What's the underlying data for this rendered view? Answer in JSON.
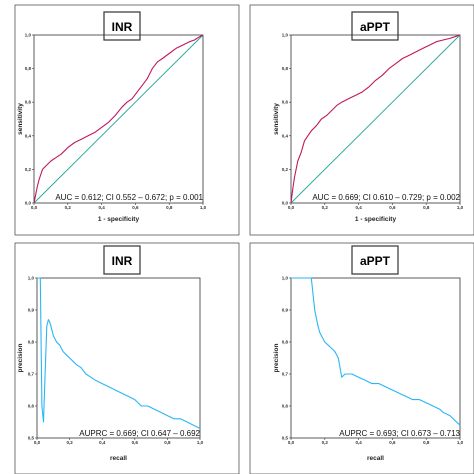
{
  "chart_data": [
    {
      "type": "line",
      "title": "INR",
      "xlabel": "1 - specificity",
      "ylabel": "sensitivity",
      "xlim": [
        0,
        1
      ],
      "ylim": [
        0,
        1
      ],
      "x_ticks": [
        "0,0",
        "0,2",
        "0,4",
        "0,6",
        "0,8",
        "1,0"
      ],
      "y_ticks": [
        "0,0",
        "0,2",
        "0,4",
        "0,6",
        "0,8",
        "1,0"
      ],
      "annotation": "AUC = 0.612; CI 0.552 – 0.672; p = 0.001",
      "colors": {
        "curve": "#c2185b",
        "reference": "#26a69a"
      },
      "series": [
        {
          "x": [
            0,
            0.01,
            0.02,
            0.03,
            0.05,
            0.07,
            0.1,
            0.13,
            0.16,
            0.2,
            0.24,
            0.28,
            0.32,
            0.36,
            0.4,
            0.44,
            0.48,
            0.52,
            0.55,
            0.58,
            0.61,
            0.64,
            0.67,
            0.7,
            0.73,
            0.76,
            0.8,
            0.84,
            0.88,
            0.92,
            0.95,
            0.98,
            1.0
          ],
          "y": [
            0,
            0.05,
            0.1,
            0.14,
            0.2,
            0.22,
            0.25,
            0.27,
            0.29,
            0.33,
            0.36,
            0.38,
            0.4,
            0.42,
            0.45,
            0.48,
            0.52,
            0.57,
            0.6,
            0.62,
            0.66,
            0.7,
            0.74,
            0.8,
            0.84,
            0.86,
            0.89,
            0.92,
            0.94,
            0.96,
            0.97,
            0.99,
            1.0
          ]
        }
      ]
    },
    {
      "type": "line",
      "title": "aPPT",
      "xlabel": "1 - specificity",
      "ylabel": "sensitivity",
      "xlim": [
        0,
        1
      ],
      "ylim": [
        0,
        1
      ],
      "x_ticks": [
        "0,0",
        "0,2",
        "0,4",
        "0,6",
        "0,8",
        "1,0"
      ],
      "y_ticks": [
        "0,0",
        "0,2",
        "0,4",
        "0,6",
        "0,8",
        "1,0"
      ],
      "annotation": "AUC = 0.669; CI 0.610 – 0.729; p = 0.002",
      "colors": {
        "curve": "#c2185b",
        "reference": "#26a69a"
      },
      "series": [
        {
          "x": [
            0,
            0.01,
            0.02,
            0.04,
            0.06,
            0.08,
            0.1,
            0.12,
            0.15,
            0.18,
            0.21,
            0.24,
            0.27,
            0.3,
            0.34,
            0.38,
            0.42,
            0.46,
            0.5,
            0.54,
            0.58,
            0.62,
            0.66,
            0.7,
            0.74,
            0.78,
            0.82,
            0.86,
            0.9,
            0.94,
            0.97,
            1.0
          ],
          "y": [
            0,
            0.08,
            0.15,
            0.25,
            0.3,
            0.37,
            0.4,
            0.43,
            0.46,
            0.5,
            0.52,
            0.55,
            0.58,
            0.6,
            0.62,
            0.64,
            0.66,
            0.69,
            0.73,
            0.76,
            0.8,
            0.83,
            0.86,
            0.88,
            0.9,
            0.92,
            0.94,
            0.96,
            0.97,
            0.98,
            0.99,
            1.0
          ]
        }
      ]
    },
    {
      "type": "line",
      "title": "INR",
      "xlabel": "recall",
      "ylabel": "precision",
      "xlim": [
        0,
        1
      ],
      "ylim": [
        0.5,
        1
      ],
      "x_ticks": [
        "0,0",
        "0,2",
        "0,4",
        "0,6",
        "0,8",
        "1,0"
      ],
      "y_ticks": [
        "0,5",
        "0,6",
        "0,7",
        "0,8",
        "0,9",
        "1,0"
      ],
      "annotation": "AUPRC = 0.669; CI 0.647 – 0.692",
      "colors": {
        "curve": "#29b6f6"
      },
      "series": [
        {
          "x": [
            0,
            0.01,
            0.02,
            0.03,
            0.04,
            0.05,
            0.06,
            0.07,
            0.08,
            0.09,
            0.1,
            0.12,
            0.14,
            0.16,
            0.18,
            0.2,
            0.22,
            0.24,
            0.27,
            0.3,
            0.33,
            0.36,
            0.4,
            0.44,
            0.48,
            0.52,
            0.56,
            0.6,
            0.64,
            0.68,
            0.72,
            0.76,
            0.8,
            0.84,
            0.88,
            0.92,
            0.96,
            1.0
          ],
          "y": [
            1.0,
            1.0,
            1.0,
            0.6,
            0.55,
            0.7,
            0.85,
            0.87,
            0.86,
            0.84,
            0.82,
            0.8,
            0.79,
            0.77,
            0.76,
            0.75,
            0.74,
            0.73,
            0.72,
            0.7,
            0.69,
            0.68,
            0.67,
            0.66,
            0.65,
            0.64,
            0.63,
            0.62,
            0.6,
            0.6,
            0.59,
            0.58,
            0.57,
            0.56,
            0.56,
            0.55,
            0.54,
            0.53
          ]
        }
      ]
    },
    {
      "type": "line",
      "title": "aPPT",
      "xlabel": "recall",
      "ylabel": "precision",
      "xlim": [
        0,
        1
      ],
      "ylim": [
        0.5,
        1
      ],
      "x_ticks": [
        "0,0",
        "0,2",
        "0,4",
        "0,6",
        "0,8",
        "1,0"
      ],
      "y_ticks": [
        "0,5",
        "0,6",
        "0,7",
        "0,8",
        "0,9",
        "1,0"
      ],
      "annotation": "AUPRC = 0.693; CI 0.673 – 0.713",
      "colors": {
        "curve": "#29b6f6"
      },
      "series": [
        {
          "x": [
            0,
            0.04,
            0.08,
            0.12,
            0.14,
            0.16,
            0.17,
            0.18,
            0.2,
            0.22,
            0.24,
            0.26,
            0.28,
            0.3,
            0.32,
            0.36,
            0.4,
            0.44,
            0.48,
            0.52,
            0.56,
            0.6,
            0.64,
            0.68,
            0.72,
            0.76,
            0.8,
            0.84,
            0.88,
            0.9,
            0.94,
            0.98,
            1.0
          ],
          "y": [
            1.0,
            1.0,
            1.0,
            1.0,
            0.9,
            0.85,
            0.83,
            0.82,
            0.8,
            0.79,
            0.78,
            0.77,
            0.75,
            0.69,
            0.7,
            0.7,
            0.69,
            0.68,
            0.67,
            0.67,
            0.66,
            0.65,
            0.64,
            0.63,
            0.62,
            0.62,
            0.61,
            0.6,
            0.59,
            0.58,
            0.57,
            0.55,
            0.54
          ]
        }
      ]
    }
  ]
}
